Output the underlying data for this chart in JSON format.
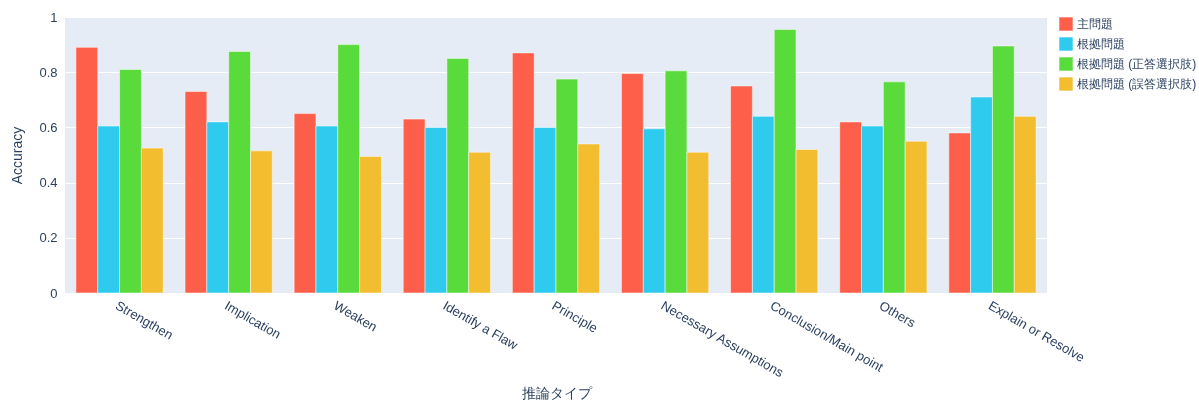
{
  "chart_data": {
    "type": "bar",
    "xlabel": "推論タイプ",
    "ylabel": "Accuracy",
    "categories": [
      "Strengthen",
      "Implication",
      "Weaken",
      "Identify a Flaw",
      "Principle",
      "Necessary Assumptions",
      "Conclusion/Main point",
      "Others",
      "Explain or Resolve"
    ],
    "series": [
      {
        "name": "主問題",
        "color": "#fe5f4a",
        "values": [
          0.89,
          0.73,
          0.65,
          0.63,
          0.87,
          0.795,
          0.75,
          0.62,
          0.58
        ]
      },
      {
        "name": "根拠問題",
        "color": "#2ecbef",
        "values": [
          0.605,
          0.62,
          0.605,
          0.6,
          0.6,
          0.595,
          0.64,
          0.605,
          0.71
        ]
      },
      {
        "name": "根拠問題 (正答選択肢)",
        "color": "#5adb3c",
        "values": [
          0.81,
          0.875,
          0.9,
          0.85,
          0.775,
          0.805,
          0.955,
          0.765,
          0.895
        ]
      },
      {
        "name": "根拠問題 (誤答選択肢)",
        "color": "#f2be2f",
        "values": [
          0.525,
          0.515,
          0.495,
          0.51,
          0.54,
          0.51,
          0.52,
          0.55,
          0.64
        ]
      }
    ],
    "ylim": [
      0,
      1
    ],
    "yticks": [
      0,
      0.2,
      0.4,
      0.6,
      0.8,
      1
    ],
    "grid": "y",
    "legend": "top right"
  }
}
